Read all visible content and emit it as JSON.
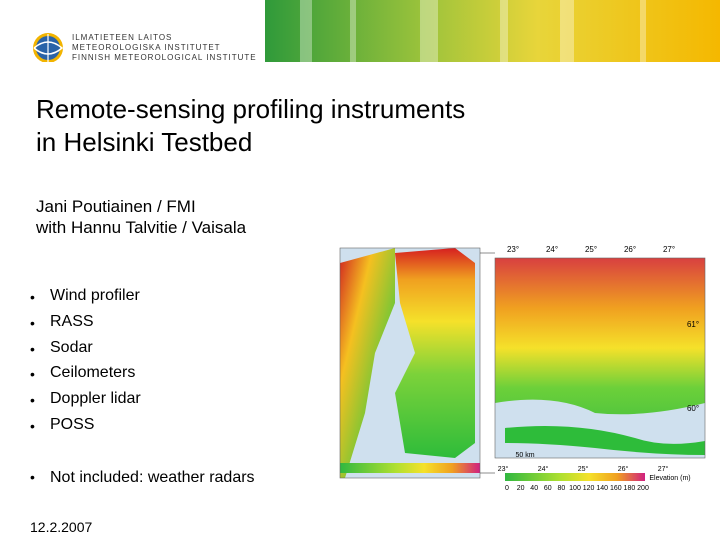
{
  "header": {
    "logo_lines": [
      "ILMATIETEEN LAITOS",
      "METEOROLOGISKA INSTITUTET",
      "FINNISH METEOROLOGICAL INSTITUTE"
    ]
  },
  "slide": {
    "title_lines": [
      "Remote-sensing profiling instruments",
      "in Helsinki Testbed"
    ],
    "subtitle_lines": [
      "Jani Poutiainen / FMI",
      "with Hannu Talvitie / Vaisala"
    ],
    "bullets": [
      "Wind profiler",
      "RASS",
      "Sodar",
      "Ceilometers",
      "Doppler lidar",
      "POSS"
    ],
    "extra_bullet": "Not included: weather radars",
    "date": "12.2.2007"
  },
  "right_map": {
    "longitudes": [
      "23°",
      "24°",
      "25°",
      "26°",
      "27°"
    ],
    "latitudes": [
      "61°",
      "60°"
    ],
    "scale": "50 km",
    "legend_title": "Elevation (m)",
    "legend_ticks": [
      "0",
      "20",
      "40",
      "60",
      "80",
      "100",
      "120",
      "140",
      "160",
      "180",
      "200"
    ]
  }
}
